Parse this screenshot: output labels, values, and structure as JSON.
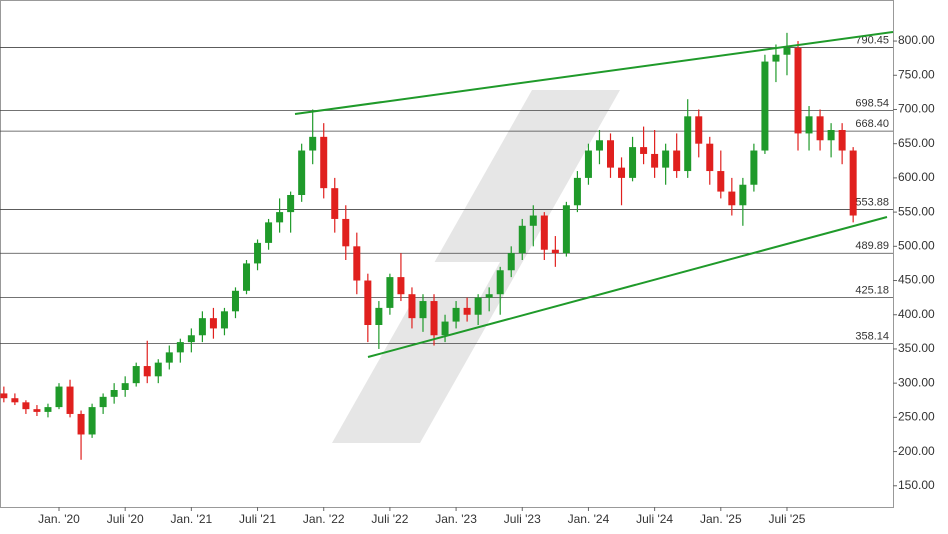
{
  "chart_data": {
    "type": "candlestick",
    "categories": [
      null,
      null,
      null,
      null,
      null,
      "Jan. '20",
      null,
      null,
      null,
      null,
      null,
      "Juli '20",
      null,
      null,
      null,
      null,
      null,
      "Jan. '21",
      null,
      null,
      null,
      null,
      null,
      "Juli '21",
      null,
      null,
      null,
      null,
      null,
      "Jan. '22",
      null,
      null,
      null,
      null,
      null,
      "Juli '22",
      null,
      null,
      null,
      null,
      null,
      "Jan. '23",
      null,
      null,
      null,
      null,
      null,
      "Juli '23",
      null,
      null,
      null,
      null,
      null,
      "Jan. '24",
      null,
      null,
      null,
      null,
      null,
      "Juli '24",
      null,
      null,
      null,
      null,
      null,
      "Jan. '25",
      null,
      null,
      null,
      null,
      null,
      "Juli '25",
      null,
      null,
      null,
      null,
      null,
      null
    ],
    "open": [
      285,
      278,
      272,
      262,
      258,
      265,
      295,
      255,
      225,
      265,
      280,
      290,
      300,
      325,
      310,
      330,
      345,
      360,
      370,
      395,
      380,
      405,
      435,
      475,
      505,
      535,
      550,
      575,
      640,
      660,
      585,
      540,
      500,
      450,
      385,
      410,
      455,
      430,
      395,
      420,
      370,
      390,
      410,
      400,
      425,
      430,
      465,
      490,
      530,
      545,
      495,
      490,
      560,
      600,
      640,
      655,
      615,
      600,
      645,
      635,
      615,
      640,
      610,
      690,
      650,
      610,
      580,
      560,
      590,
      640,
      770,
      780,
      790,
      665,
      690,
      655,
      670,
      640
    ],
    "high": [
      295,
      285,
      275,
      268,
      270,
      300,
      305,
      260,
      270,
      285,
      300,
      310,
      330,
      362,
      335,
      355,
      365,
      380,
      405,
      410,
      410,
      440,
      480,
      510,
      540,
      570,
      580,
      650,
      700,
      680,
      600,
      560,
      520,
      460,
      420,
      460,
      490,
      440,
      430,
      430,
      400,
      420,
      425,
      430,
      440,
      470,
      500,
      540,
      560,
      550,
      515,
      565,
      610,
      650,
      670,
      665,
      630,
      660,
      675,
      670,
      650,
      665,
      715,
      700,
      660,
      640,
      600,
      600,
      650,
      780,
      795,
      812,
      800,
      705,
      700,
      680,
      680,
      645
    ],
    "low": [
      272,
      268,
      255,
      252,
      250,
      262,
      250,
      188,
      220,
      255,
      270,
      280,
      295,
      300,
      300,
      320,
      330,
      345,
      360,
      365,
      370,
      395,
      430,
      465,
      495,
      520,
      520,
      565,
      620,
      570,
      520,
      480,
      430,
      360,
      350,
      400,
      420,
      380,
      375,
      355,
      360,
      380,
      390,
      385,
      405,
      400,
      455,
      480,
      500,
      480,
      470,
      485,
      550,
      590,
      620,
      600,
      560,
      595,
      620,
      600,
      590,
      600,
      600,
      630,
      590,
      570,
      545,
      530,
      580,
      635,
      740,
      750,
      640,
      640,
      640,
      630,
      620,
      535
    ],
    "close": [
      278,
      272,
      262,
      258,
      265,
      295,
      255,
      225,
      265,
      280,
      290,
      300,
      325,
      310,
      330,
      345,
      360,
      370,
      395,
      380,
      405,
      435,
      475,
      505,
      535,
      550,
      575,
      640,
      660,
      585,
      540,
      500,
      450,
      385,
      410,
      455,
      430,
      395,
      420,
      370,
      390,
      410,
      400,
      425,
      430,
      465,
      490,
      530,
      545,
      495,
      490,
      560,
      600,
      640,
      655,
      615,
      600,
      645,
      635,
      615,
      640,
      610,
      690,
      650,
      610,
      580,
      560,
      590,
      640,
      770,
      780,
      790,
      665,
      690,
      655,
      670,
      640,
      545
    ],
    "up_color": "#1f9a2a",
    "down_color": "#e0201e",
    "ylim": [
      119,
      860
    ],
    "yticks": [
      {
        "value": 150,
        "label": "150.00"
      },
      {
        "value": 200,
        "label": "200.00"
      },
      {
        "value": 250,
        "label": "250.00"
      },
      {
        "value": 300,
        "label": "300.00"
      },
      {
        "value": 350,
        "label": "350.00"
      },
      {
        "value": 400,
        "label": "400.00"
      },
      {
        "value": 450,
        "label": "450.00"
      },
      {
        "value": 500,
        "label": "500.00"
      },
      {
        "value": 550,
        "label": "550.00"
      },
      {
        "value": 600,
        "label": "600.00"
      },
      {
        "value": 650,
        "label": "650.00"
      },
      {
        "value": 700,
        "label": "700.00"
      },
      {
        "value": 750,
        "label": "750.00"
      },
      {
        "value": 800,
        "label": "800.00"
      }
    ],
    "levels": [
      790.45,
      698.54,
      {
        "value": 668.4,
        "label": "668.40"
      },
      553.88,
      489.89,
      425.18,
      358.14
    ],
    "level_color": "#444444"
  }
}
